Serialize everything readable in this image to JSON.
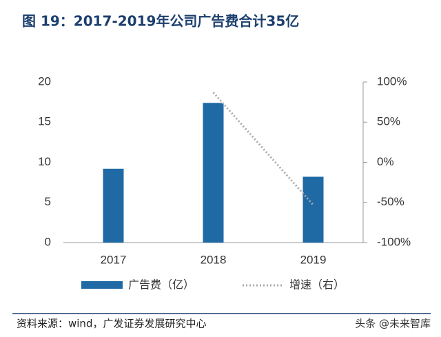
{
  "title": "图 19：2017-2019年公司广告费合计35亿",
  "source": "资料来源：wind，广发证券发展研究中心",
  "watermark": "头条 @未来智库",
  "chart_data": {
    "type": "bar-line",
    "categories": [
      "2017",
      "2018",
      "2019"
    ],
    "series": [
      {
        "name": "广告费（亿）",
        "type": "bar",
        "color": "#1f6aa5",
        "values": [
          9.2,
          17.4,
          8.2
        ]
      },
      {
        "name": "增速（右）",
        "type": "line",
        "color": "#aaaaaa",
        "axis": "y2",
        "values": [
          null,
          87,
          -53
        ]
      }
    ],
    "ylim": [
      0,
      20
    ],
    "yticks": [
      0,
      5,
      10,
      15,
      20
    ],
    "y2lim": [
      -100,
      100
    ],
    "y2ticks": [
      {
        "value": -100,
        "label": "-100%"
      },
      {
        "value": -50,
        "label": "-50%"
      },
      {
        "value": 0,
        "label": "0%"
      },
      {
        "value": 50,
        "label": "50%"
      },
      {
        "value": 100,
        "label": "100%"
      }
    ],
    "legend": "bottom"
  }
}
